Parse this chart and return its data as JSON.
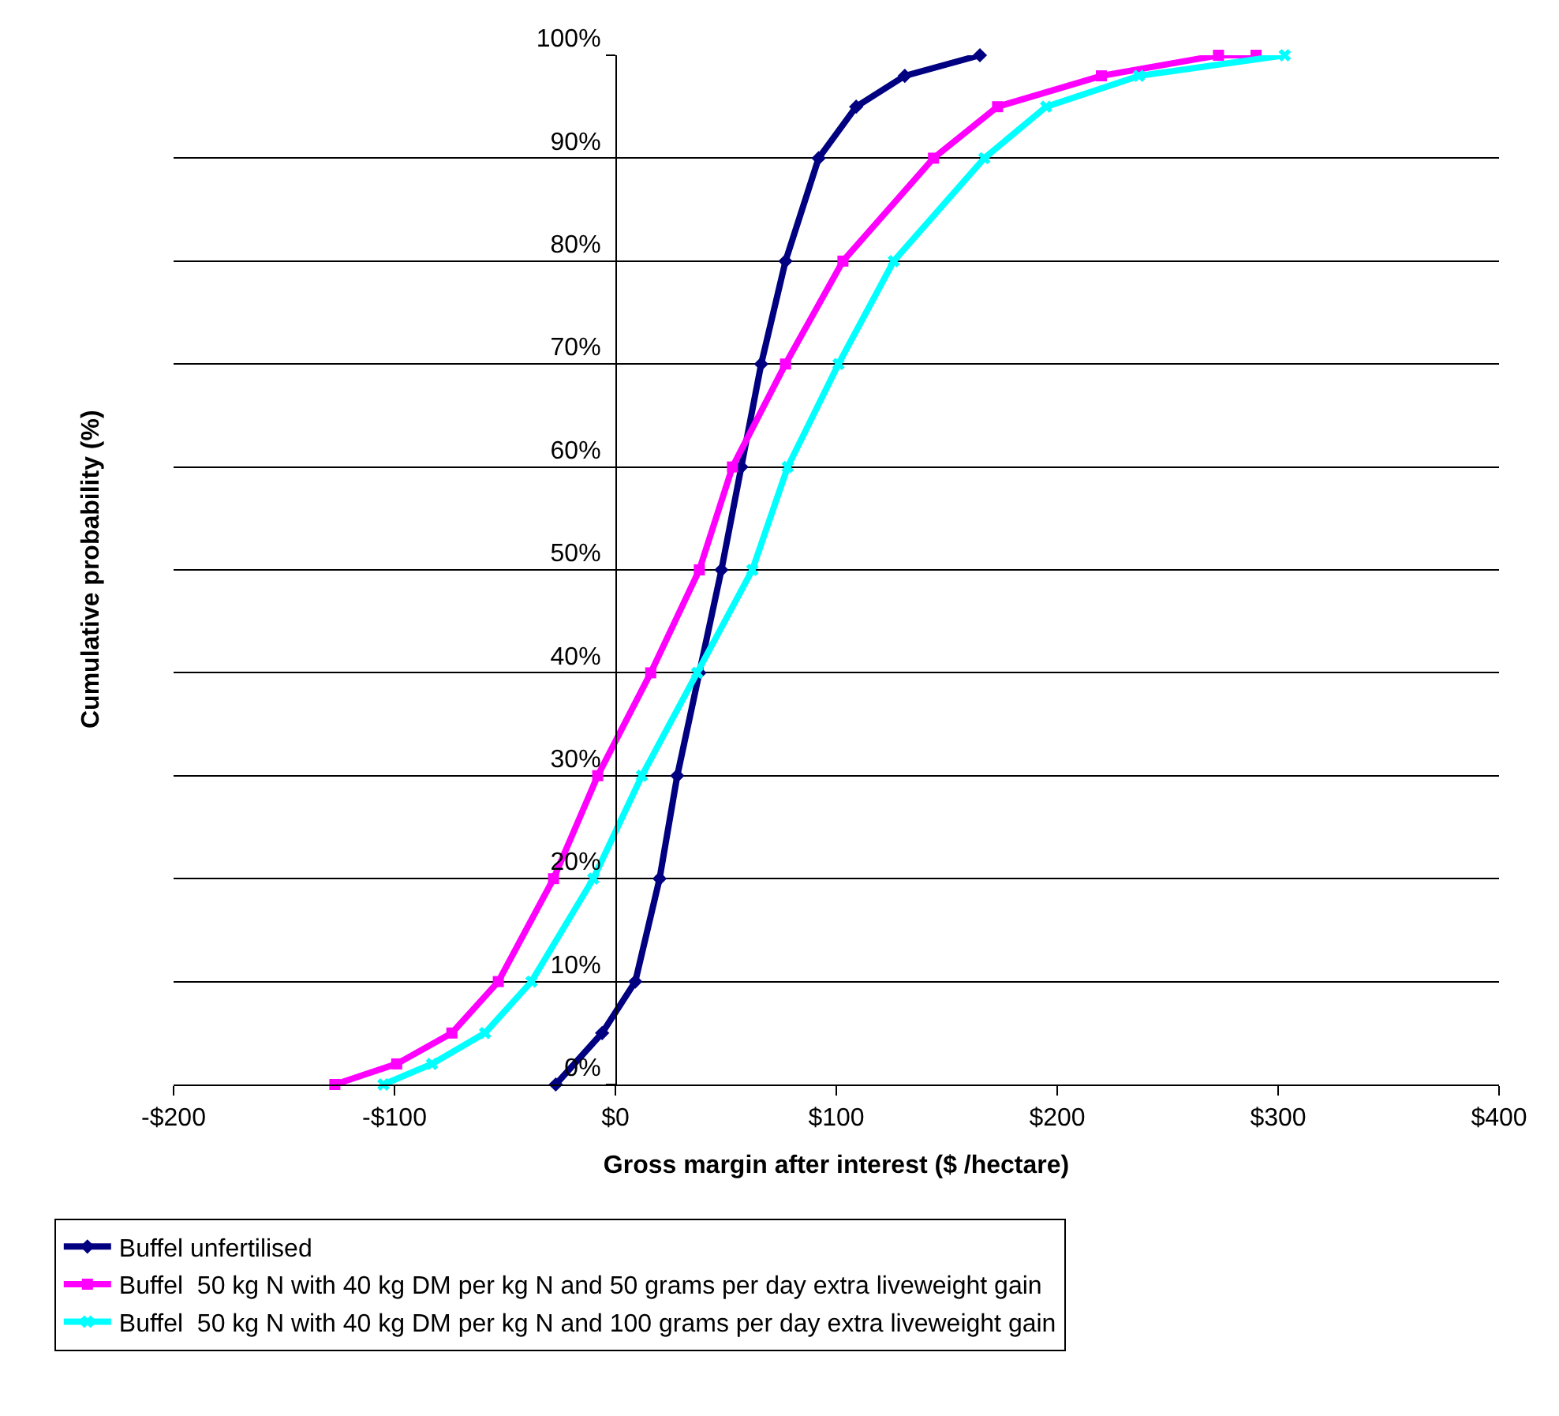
{
  "chart_data": {
    "type": "line",
    "xlabel": "Gross margin after interest ($ /hectare)",
    "ylabel": "Cumulative probability (%)",
    "xlim": [
      -200,
      400
    ],
    "xticks": [
      {
        "value": -200,
        "label": "-$200"
      },
      {
        "value": -100,
        "label": "-$100"
      },
      {
        "value": 0,
        "label": "$0"
      },
      {
        "value": 100,
        "label": "$100"
      },
      {
        "value": 200,
        "label": "$200"
      },
      {
        "value": 300,
        "label": "$300"
      },
      {
        "value": 400,
        "label": "$400"
      }
    ],
    "ylim": [
      0,
      100
    ],
    "yticks": [
      {
        "value": 0,
        "label": "0%"
      },
      {
        "value": 10,
        "label": "10%"
      },
      {
        "value": 20,
        "label": "20%"
      },
      {
        "value": 30,
        "label": "30%"
      },
      {
        "value": 40,
        "label": "40%"
      },
      {
        "value": 50,
        "label": "50%"
      },
      {
        "value": 60,
        "label": "60%"
      },
      {
        "value": 70,
        "label": "70%"
      },
      {
        "value": 80,
        "label": "80%"
      },
      {
        "value": 90,
        "label": "90%"
      },
      {
        "value": 100,
        "label": "100%"
      }
    ],
    "grid": "y",
    "legend": "bottom",
    "series": [
      {
        "name": "Buffel unfertilised",
        "color": "#000080",
        "marker": "diamond",
        "x": [
          -27,
          -6,
          9,
          20,
          28,
          38,
          48,
          57,
          66,
          77,
          92,
          109,
          131,
          165
        ],
        "values": [
          0,
          5,
          10,
          20,
          30,
          40,
          50,
          60,
          70,
          80,
          90,
          95,
          98,
          100
        ]
      },
      {
        "name": "Buffel  50 kg N with 40 kg DM per kg N and 50 grams per day extra liveweight gain",
        "color": "#ff00ff",
        "marker": "square",
        "x": [
          -127,
          -99,
          -74,
          -53,
          -28,
          -8,
          16,
          38,
          53,
          77,
          103,
          144,
          173,
          220,
          273,
          290
        ],
        "values": [
          0,
          2,
          5,
          10,
          20,
          30,
          40,
          50,
          60,
          70,
          80,
          90,
          95,
          98,
          100,
          100
        ]
      },
      {
        "name": "Buffel  50 kg N with 40 kg DM per kg N and 100 grams per day extra liveweight gain",
        "color": "#00ffff",
        "marker": "cross",
        "x": [
          -105,
          -83,
          -59,
          -38,
          -10,
          12,
          37,
          62,
          78,
          101,
          126,
          167,
          195,
          237,
          303
        ],
        "values": [
          0,
          2,
          5,
          10,
          20,
          30,
          40,
          50,
          60,
          70,
          80,
          90,
          95,
          98,
          100
        ]
      }
    ]
  }
}
